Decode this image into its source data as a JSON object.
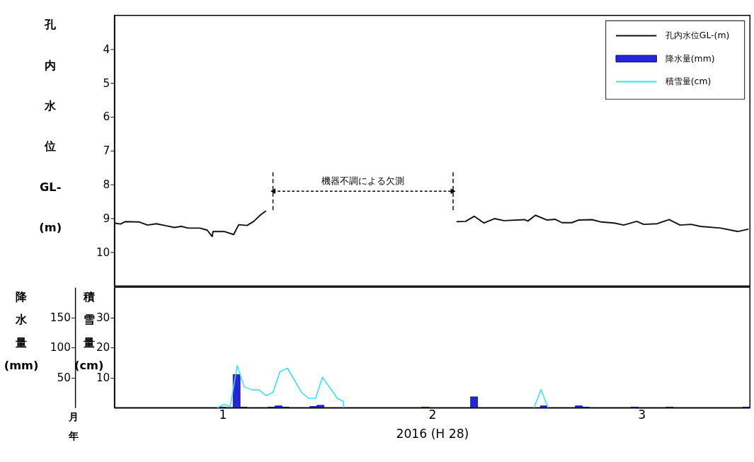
{
  "chart_data": [
    {
      "type": "line",
      "ylabel": "孔内水位GL-(m)",
      "xlim": [
        "2016-01-01",
        "2016-04-01"
      ],
      "ylim": [
        11,
        3
      ],
      "yticks": [
        4,
        5,
        6,
        7,
        8,
        9,
        10
      ],
      "tick_labels": "y",
      "legend": "top right",
      "series": [
        {
          "name": "孔内水位GL-(m)",
          "color": "#111111",
          "x": [
            "2016-01-01T00:00",
            "2016-01-01T21:00",
            "2016-01-02T13:00",
            "2016-01-04T14:00",
            "2016-01-05T18:00",
            "2016-01-07T00:00",
            "2016-01-08T10:00",
            "2016-01-09T14:00",
            "2016-01-10T14:00",
            "2016-01-11T14:00",
            "2016-01-13T05:00",
            "2016-01-14T07:00",
            "2016-01-15T00:00",
            "2016-01-15T03:00",
            "2016-01-16T17:00",
            "2016-01-18T02:00",
            "2016-01-18T19:00",
            "2016-01-20T00:00",
            "2016-01-20T23:00",
            "2016-01-21T22:00",
            "2016-01-22T17:00",
            "2016-02-05T00:00",
            "2016-02-19T00:00",
            "2016-02-20T07:00",
            "2016-02-21T13:00",
            "2016-02-22T22:00",
            "2016-02-24T10:00",
            "2016-02-25T19:00",
            "2016-02-28T17:00",
            "2016-02-29T05:00",
            "2016-03-01T07:00",
            "2016-03-02T22:00",
            "2016-03-04T02:00",
            "2016-03-05T02:00",
            "2016-03-06T12:00",
            "2016-03-07T12:00",
            "2016-03-09T10:00",
            "2016-03-10T17:00",
            "2016-03-12T14:00",
            "2016-03-13T22:00",
            "2016-03-15T19:00",
            "2016-03-16T19:00",
            "2016-03-18T17:00",
            "2016-03-20T10:00",
            "2016-03-22T00:00",
            "2016-03-23T14:00",
            "2016-03-24T22:00",
            "2016-03-27T19:00",
            "2016-03-30T07:00",
            "2016-03-31T19:00"
          ],
          "values": [
            9.14,
            9.17,
            9.1,
            9.11,
            9.2,
            9.16,
            9.22,
            9.27,
            9.24,
            9.29,
            9.29,
            9.35,
            9.54,
            9.39,
            9.39,
            9.48,
            9.19,
            9.21,
            9.09,
            8.9,
            8.78,
            null,
            9.1,
            9.09,
            8.94,
            9.14,
            9.01,
            9.07,
            9.04,
            9.08,
            8.91,
            9.05,
            9.03,
            9.13,
            9.13,
            9.05,
            9.04,
            9.11,
            9.14,
            9.2,
            9.09,
            9.18,
            9.16,
            9.04,
            9.2,
            9.18,
            9.24,
            9.29,
            9.39,
            9.32
          ]
        }
      ],
      "ref_lines": [
        {
          "axis": "x",
          "value": "2016-01-23T17:00",
          "color": "#000000",
          "line_style": "dashed"
        },
        {
          "axis": "x",
          "value": "2016-02-18T12:00",
          "color": "#000000",
          "line_style": "dashed"
        }
      ],
      "annotations": [
        "機器不調による欠測"
      ]
    },
    {
      "type": "bar",
      "ylabel": "降水量(mm)",
      "y2label": "積雪量(cm)",
      "xlabel": "2016 (H 28)",
      "xlim": [
        "2016-01-01",
        "2016-04-01"
      ],
      "xticks": [
        {
          "value": "2016-01-16T12:00",
          "label": "1"
        },
        {
          "value": "2016-02-15T12:00",
          "label": "2"
        },
        {
          "value": "2016-03-16T12:00",
          "label": "3"
        }
      ],
      "ylim": [
        0,
        200
      ],
      "yticks": [
        50,
        100,
        150
      ],
      "y2lim": [
        0,
        40
      ],
      "y2ticks": [
        10,
        20,
        30
      ],
      "annotations": [
        "月",
        "年"
      ],
      "legend": "top right",
      "series": [
        {
          "name": "降水量(mm)",
          "type": "bar",
          "color": "#2626d9",
          "x": [
            "2016-01-16",
            "2016-01-18",
            "2016-01-19",
            "2016-01-23",
            "2016-01-24",
            "2016-01-25",
            "2016-01-29",
            "2016-01-30",
            "2016-02-14",
            "2016-02-21",
            "2016-03-02",
            "2016-03-07",
            "2016-03-08",
            "2016-03-15",
            "2016-03-20",
            "2016-03-31"
          ],
          "values": [
            1,
            55,
            1,
            1,
            3,
            1,
            2,
            4,
            1,
            18,
            3,
            3,
            1,
            1,
            1,
            1
          ]
        },
        {
          "name": "積雪量(cm)",
          "type": "line",
          "axis": "y2",
          "color": "#33e6f2",
          "x": [
            "2016-01-15T17:00",
            "2016-01-16T17:00",
            "2016-01-17T14:00",
            "2016-01-18T14:00",
            "2016-01-19T14:00",
            "2016-01-20T19:00",
            "2016-01-21T17:00",
            "2016-01-22T17:00",
            "2016-01-23T17:00",
            "2016-01-24T17:00",
            "2016-01-25T19:00",
            "2016-01-27T19:00",
            "2016-01-28T19:00",
            "2016-01-29T19:00",
            "2016-01-30T19:00",
            "2016-02-01T22:00",
            "2016-02-02T19:00",
            "2016-02-02T20:00",
            "2016-02-15T00:00",
            "2016-03-01T02:00",
            "2016-03-02T02:00",
            "2016-03-03T02:00"
          ],
          "values": [
            0,
            1.1,
            0.4,
            14.0,
            6.9,
            5.9,
            5.9,
            4.0,
            5.1,
            12.0,
            13.1,
            5.1,
            3.1,
            3.1,
            10.1,
            3.1,
            2.1,
            0,
            null,
            0,
            6.0,
            0
          ]
        }
      ]
    }
  ]
}
